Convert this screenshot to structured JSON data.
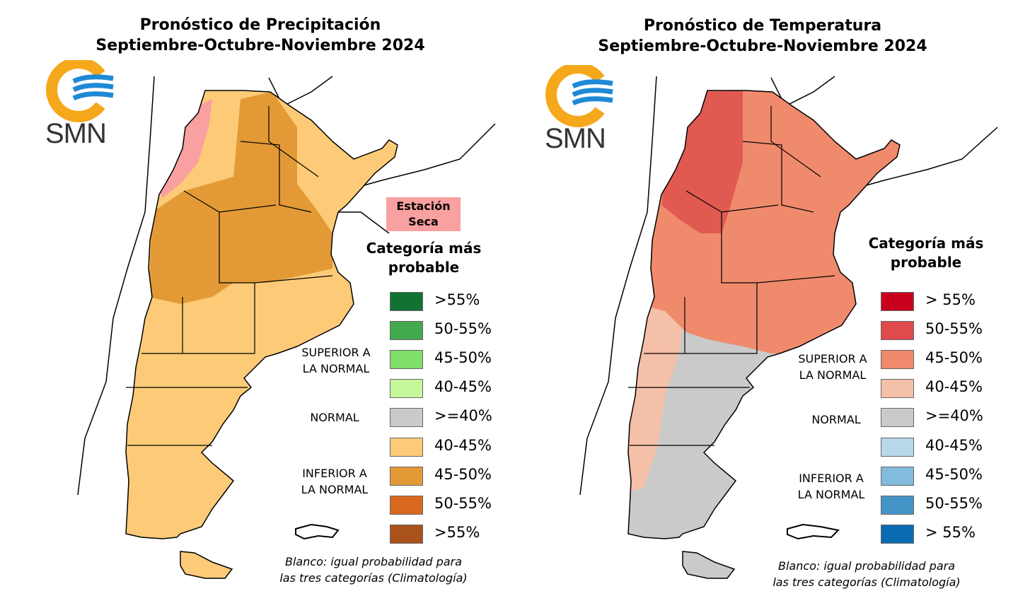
{
  "precipitation": {
    "title_line1": "Pronóstico de Precipitación",
    "title_line2": "Septiembre-Octubre-Noviembre 2024",
    "logo_text": "SMN",
    "dry_season_label_line1": "Estación",
    "dry_season_label_line2": "Seca",
    "legend_title_line1": "Categoría más",
    "legend_title_line2": "probable",
    "above_label_line1": "SUPERIOR A",
    "above_label_line2": "LA NORMAL",
    "normal_label": "NORMAL",
    "below_label_line1": "INFERIOR A",
    "below_label_line2": "LA NORMAL",
    "legend": [
      {
        "label": ">55%",
        "color": "#137233"
      },
      {
        "label": "50-55%",
        "color": "#43a94d"
      },
      {
        "label": "45-50%",
        "color": "#80de6a"
      },
      {
        "label": "40-45%",
        "color": "#c6f79b"
      },
      {
        "label": ">=40%",
        "color": "#cacaca"
      },
      {
        "label": "40-45%",
        "color": "#fdcb77"
      },
      {
        "label": "45-50%",
        "color": "#e39a36"
      },
      {
        "label": "50-55%",
        "color": "#d9691e"
      },
      {
        "label": ">55%",
        "color": "#a9521b"
      }
    ],
    "note_line1": "Blanco: igual probabilidad para",
    "note_line2": "las tres categorías (Climatología)"
  },
  "temperature": {
    "title_line1": "Pronóstico de Temperatura",
    "title_line2": "Septiembre-Octubre-Noviembre 2024",
    "logo_text": "SMN",
    "legend_title_line1": "Categoría más",
    "legend_title_line2": "probable",
    "above_label_line1": "SUPERIOR A",
    "above_label_line2": "LA NORMAL",
    "normal_label": "NORMAL",
    "below_label_line1": "INFERIOR A",
    "below_label_line2": "LA NORMAL",
    "legend": [
      {
        "label": "> 55%",
        "color": "#c8001e"
      },
      {
        "label": "50-55%",
        "color": "#e04a4c"
      },
      {
        "label": "45-50%",
        "color": "#f08a6c"
      },
      {
        "label": "40-45%",
        "color": "#f4c0a8"
      },
      {
        "label": ">=40%",
        "color": "#cacaca"
      },
      {
        "label": "40-45%",
        "color": "#b8d8ea"
      },
      {
        "label": "45-50%",
        "color": "#82bbdc"
      },
      {
        "label": "50-55%",
        "color": "#4494c8"
      },
      {
        "label": "> 55%",
        "color": "#0a6cb0"
      }
    ],
    "note_line1": "Blanco: igual probabilidad para",
    "note_line2": "las tres categorías (Climatología)"
  },
  "colors": {
    "logo_orange": "#f5a81c",
    "logo_blue": "#1e8ad6",
    "dry": "#f9a0a0"
  }
}
